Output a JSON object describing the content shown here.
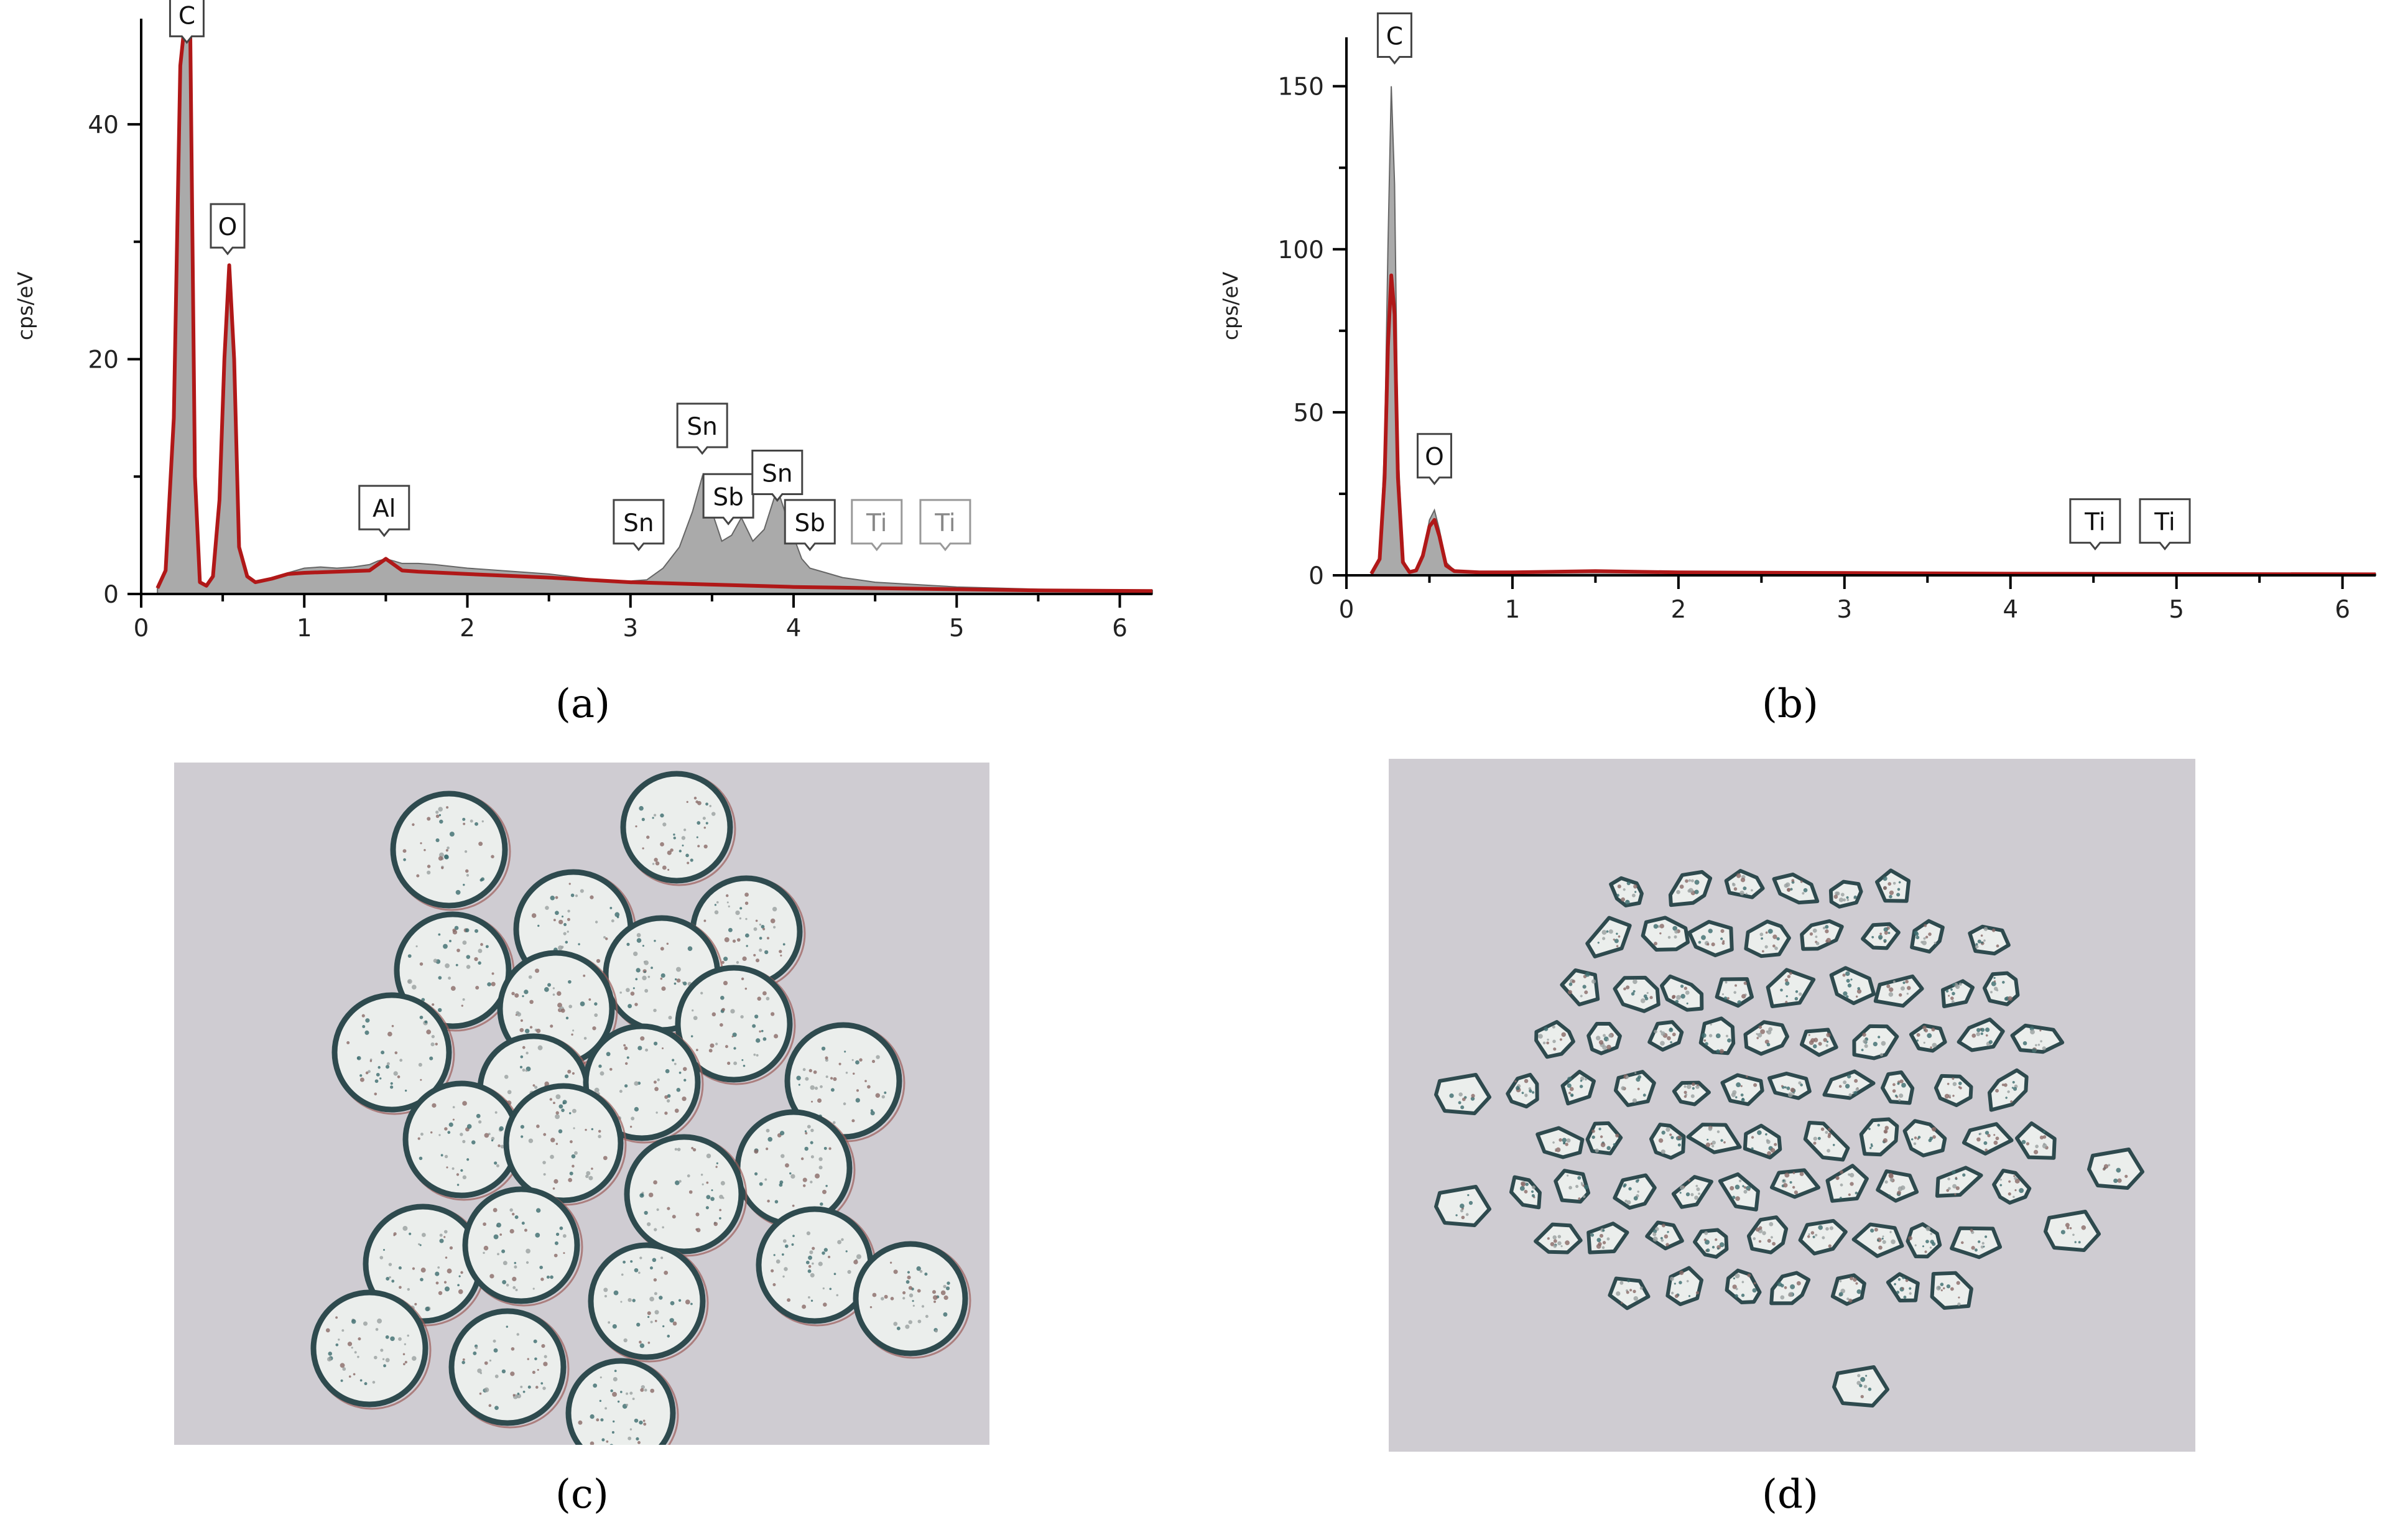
{
  "chart_data": [
    {
      "panel": "(a)",
      "type": "line",
      "ylabel": "cps/eV",
      "xlim": [
        0,
        6.2
      ],
      "ylim": [
        0,
        49
      ],
      "xticks": [
        0,
        1,
        2,
        3,
        4,
        5,
        6
      ],
      "yticks": [
        0,
        20,
        40
      ],
      "series": [
        {
          "style": "filled-gray",
          "x": [
            0.1,
            0.15,
            0.2,
            0.24,
            0.27,
            0.3,
            0.33,
            0.36,
            0.4,
            0.44,
            0.48,
            0.51,
            0.54,
            0.57,
            0.6,
            0.65,
            0.7,
            0.8,
            0.9,
            1.0,
            1.1,
            1.2,
            1.3,
            1.4,
            1.45,
            1.5,
            1.55,
            1.6,
            1.7,
            1.8,
            2.0,
            2.2,
            2.5,
            2.8,
            3.0,
            3.1,
            3.2,
            3.3,
            3.38,
            3.44,
            3.5,
            3.56,
            3.62,
            3.68,
            3.75,
            3.82,
            3.9,
            3.97,
            4.05,
            4.1,
            4.2,
            4.3,
            4.5,
            5.0,
            5.5,
            6.2
          ],
          "y": [
            0.5,
            2,
            15,
            45,
            62,
            55,
            10,
            1,
            0.7,
            1.5,
            8,
            20,
            28,
            20,
            4,
            1.5,
            1,
            1.3,
            1.8,
            2.2,
            2.3,
            2.2,
            2.3,
            2.5,
            2.8,
            3,
            2.8,
            2.6,
            2.6,
            2.5,
            2.2,
            2,
            1.7,
            1.2,
            1.1,
            1.2,
            2.2,
            4,
            7,
            10,
            7,
            4.5,
            5,
            6.5,
            4.5,
            5.5,
            9,
            6,
            3,
            2.2,
            1.8,
            1.4,
            1,
            0.6,
            0.4,
            0.3
          ]
        },
        {
          "style": "line-red",
          "x": [
            0.1,
            0.15,
            0.2,
            0.24,
            0.27,
            0.3,
            0.33,
            0.36,
            0.4,
            0.44,
            0.48,
            0.51,
            0.54,
            0.57,
            0.6,
            0.65,
            0.7,
            0.8,
            0.9,
            1.0,
            1.2,
            1.4,
            1.45,
            1.5,
            1.55,
            1.6,
            1.7,
            2.0,
            2.5,
            3.0,
            3.5,
            4.0,
            4.5,
            5.0,
            5.5,
            6.2
          ],
          "y": [
            0.5,
            2,
            15,
            45,
            62,
            55,
            10,
            1,
            0.7,
            1.5,
            8,
            20,
            28,
            20,
            4,
            1.5,
            1,
            1.3,
            1.7,
            1.8,
            1.9,
            2,
            2.5,
            3,
            2.5,
            2,
            1.9,
            1.7,
            1.4,
            1,
            0.8,
            0.6,
            0.5,
            0.4,
            0.3,
            0.25
          ]
        }
      ],
      "peak_labels": [
        {
          "text": "C",
          "x": 0.28,
          "y": 47.5
        },
        {
          "text": "O",
          "x": 0.53,
          "y": 29.5
        },
        {
          "text": "Al",
          "x": 1.49,
          "y": 5.5
        },
        {
          "text": "Sn",
          "x": 3.05,
          "y": 4.3
        },
        {
          "text": "Sn",
          "x": 3.44,
          "y": 12.5
        },
        {
          "text": "Sb",
          "x": 3.6,
          "y": 6.5
        },
        {
          "text": "Sn",
          "x": 3.9,
          "y": 8.5
        },
        {
          "text": "Sb",
          "x": 4.1,
          "y": 4.3
        },
        {
          "text": "Ti",
          "x": 4.51,
          "y": 4.3,
          "faint": true
        },
        {
          "text": "Ti",
          "x": 4.93,
          "y": 4.3,
          "faint": true
        }
      ]
    },
    {
      "panel": "(b)",
      "type": "line",
      "ylabel": "cps/eV",
      "xlim": [
        0,
        6.2
      ],
      "ylim": [
        0,
        165
      ],
      "xticks": [
        0,
        1,
        2,
        3,
        4,
        5,
        6
      ],
      "yticks": [
        0,
        50,
        100,
        150
      ],
      "series": [
        {
          "style": "filled-gray",
          "x": [
            0.15,
            0.2,
            0.23,
            0.25,
            0.27,
            0.29,
            0.31,
            0.34,
            0.38,
            0.42,
            0.46,
            0.5,
            0.53,
            0.56,
            0.6,
            0.65,
            0.8,
            1.0,
            1.5,
            2.0,
            3.0,
            4.0,
            5.0,
            6.2
          ],
          "y": [
            0.5,
            5,
            40,
            100,
            150,
            120,
            40,
            5,
            1,
            1.5,
            6,
            17,
            20,
            14,
            4,
            1.5,
            1,
            1,
            1.5,
            1,
            0.8,
            0.6,
            0.5,
            0.4
          ]
        },
        {
          "style": "line-red",
          "x": [
            0.15,
            0.2,
            0.23,
            0.25,
            0.27,
            0.29,
            0.31,
            0.34,
            0.38,
            0.42,
            0.46,
            0.5,
            0.53,
            0.56,
            0.6,
            0.65,
            0.8,
            1.0,
            1.5,
            2.0,
            3.0,
            4.0,
            5.0,
            6.2
          ],
          "y": [
            0.5,
            5,
            30,
            70,
            92,
            80,
            30,
            4,
            1,
            1.5,
            6,
            15,
            17,
            12,
            3,
            1.3,
            0.9,
            0.9,
            1.3,
            0.9,
            0.7,
            0.5,
            0.4,
            0.3
          ]
        }
      ],
      "peak_labels": [
        {
          "text": "C",
          "x": 0.29,
          "y": 159
        },
        {
          "text": "O",
          "x": 0.53,
          "y": 30
        },
        {
          "text": "Ti",
          "x": 4.51,
          "y": 10
        },
        {
          "text": "Ti",
          "x": 4.93,
          "y": 10
        }
      ]
    }
  ],
  "panel_labels": {
    "a": "(a)",
    "b": "(b)",
    "c": "(c)",
    "d": "(d)"
  },
  "colors": {
    "red_line": "#b01818",
    "gray_fill": "#aaaaaa",
    "micro_bg": "#cfccd2",
    "particle_fill": "#ebeeec",
    "particle_edge": "#2e4a4e"
  }
}
